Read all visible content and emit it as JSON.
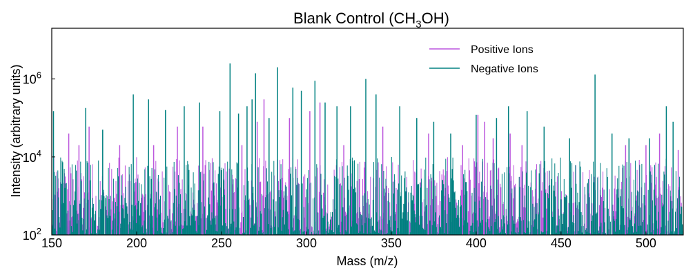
{
  "chart_data": {
    "type": "line",
    "title": "Blank Control (CH",
    "title_sub": "3",
    "title_tail": "OH)",
    "xlabel": "Mass (m/z)",
    "ylabel": "Intensity (arbitrary units)",
    "xlim": [
      150,
      522
    ],
    "ylim": [
      100,
      20000000
    ],
    "yscale": "log",
    "grid": false,
    "legend_position": "top-right",
    "x_ticks": [
      150,
      200,
      250,
      300,
      350,
      400,
      450,
      500
    ],
    "y_ticks": [
      {
        "value": 100,
        "base": "10",
        "exp": "2"
      },
      {
        "value": 10000,
        "base": "10",
        "exp": "4"
      },
      {
        "value": 1000000,
        "base": "10",
        "exp": "6"
      }
    ],
    "series": [
      {
        "name": "Positive Ions",
        "color": "#bb55dd",
        "peaks": [
          {
            "x": 160,
            "y": 40000
          },
          {
            "x": 166,
            "y": 20000
          },
          {
            "x": 172,
            "y": 60000
          },
          {
            "x": 190,
            "y": 20000
          },
          {
            "x": 210,
            "y": 20000
          },
          {
            "x": 224,
            "y": 60000
          },
          {
            "x": 239,
            "y": 60000
          },
          {
            "x": 262,
            "y": 20000
          },
          {
            "x": 271,
            "y": 80000
          },
          {
            "x": 275,
            "y": 300000
          },
          {
            "x": 290,
            "y": 100000
          },
          {
            "x": 302,
            "y": 150000
          },
          {
            "x": 308,
            "y": 250000
          },
          {
            "x": 322,
            "y": 20000
          },
          {
            "x": 345,
            "y": 60000
          },
          {
            "x": 372,
            "y": 40000
          },
          {
            "x": 392,
            "y": 20000
          },
          {
            "x": 401,
            "y": 120000
          },
          {
            "x": 405,
            "y": 80000
          },
          {
            "x": 410,
            "y": 30000
          },
          {
            "x": 420,
            "y": 40000
          },
          {
            "x": 427,
            "y": 20000
          },
          {
            "x": 488,
            "y": 20000
          },
          {
            "x": 500,
            "y": 20000
          },
          {
            "x": 508,
            "y": 40000
          },
          {
            "x": 519,
            "y": 15000
          }
        ]
      },
      {
        "name": "Negative Ions",
        "color": "#008080",
        "peaks": [
          {
            "x": 151,
            "y": 150000
          },
          {
            "x": 170,
            "y": 180000
          },
          {
            "x": 180,
            "y": 50000
          },
          {
            "x": 198,
            "y": 400000
          },
          {
            "x": 207,
            "y": 300000
          },
          {
            "x": 217,
            "y": 160000
          },
          {
            "x": 228,
            "y": 200000
          },
          {
            "x": 237,
            "y": 250000
          },
          {
            "x": 249,
            "y": 150000
          },
          {
            "x": 255,
            "y": 2500000
          },
          {
            "x": 260,
            "y": 130000
          },
          {
            "x": 265,
            "y": 200000
          },
          {
            "x": 268,
            "y": 300000
          },
          {
            "x": 270,
            "y": 1400000
          },
          {
            "x": 278,
            "y": 100000
          },
          {
            "x": 283,
            "y": 2000000
          },
          {
            "x": 292,
            "y": 600000
          },
          {
            "x": 297,
            "y": 500000
          },
          {
            "x": 305,
            "y": 900000
          },
          {
            "x": 311,
            "y": 250000
          },
          {
            "x": 318,
            "y": 200000
          },
          {
            "x": 326,
            "y": 200000
          },
          {
            "x": 335,
            "y": 1000000
          },
          {
            "x": 341,
            "y": 400000
          },
          {
            "x": 355,
            "y": 200000
          },
          {
            "x": 365,
            "y": 100000
          },
          {
            "x": 375,
            "y": 80000
          },
          {
            "x": 385,
            "y": 40000
          },
          {
            "x": 400,
            "y": 120000
          },
          {
            "x": 412,
            "y": 100000
          },
          {
            "x": 419,
            "y": 200000
          },
          {
            "x": 430,
            "y": 150000
          },
          {
            "x": 440,
            "y": 60000
          },
          {
            "x": 455,
            "y": 30000
          },
          {
            "x": 470,
            "y": 1300000
          },
          {
            "x": 480,
            "y": 40000
          },
          {
            "x": 490,
            "y": 30000
          },
          {
            "x": 502,
            "y": 30000
          },
          {
            "x": 512,
            "y": 200000
          },
          {
            "x": 516,
            "y": 80000
          }
        ]
      }
    ]
  }
}
